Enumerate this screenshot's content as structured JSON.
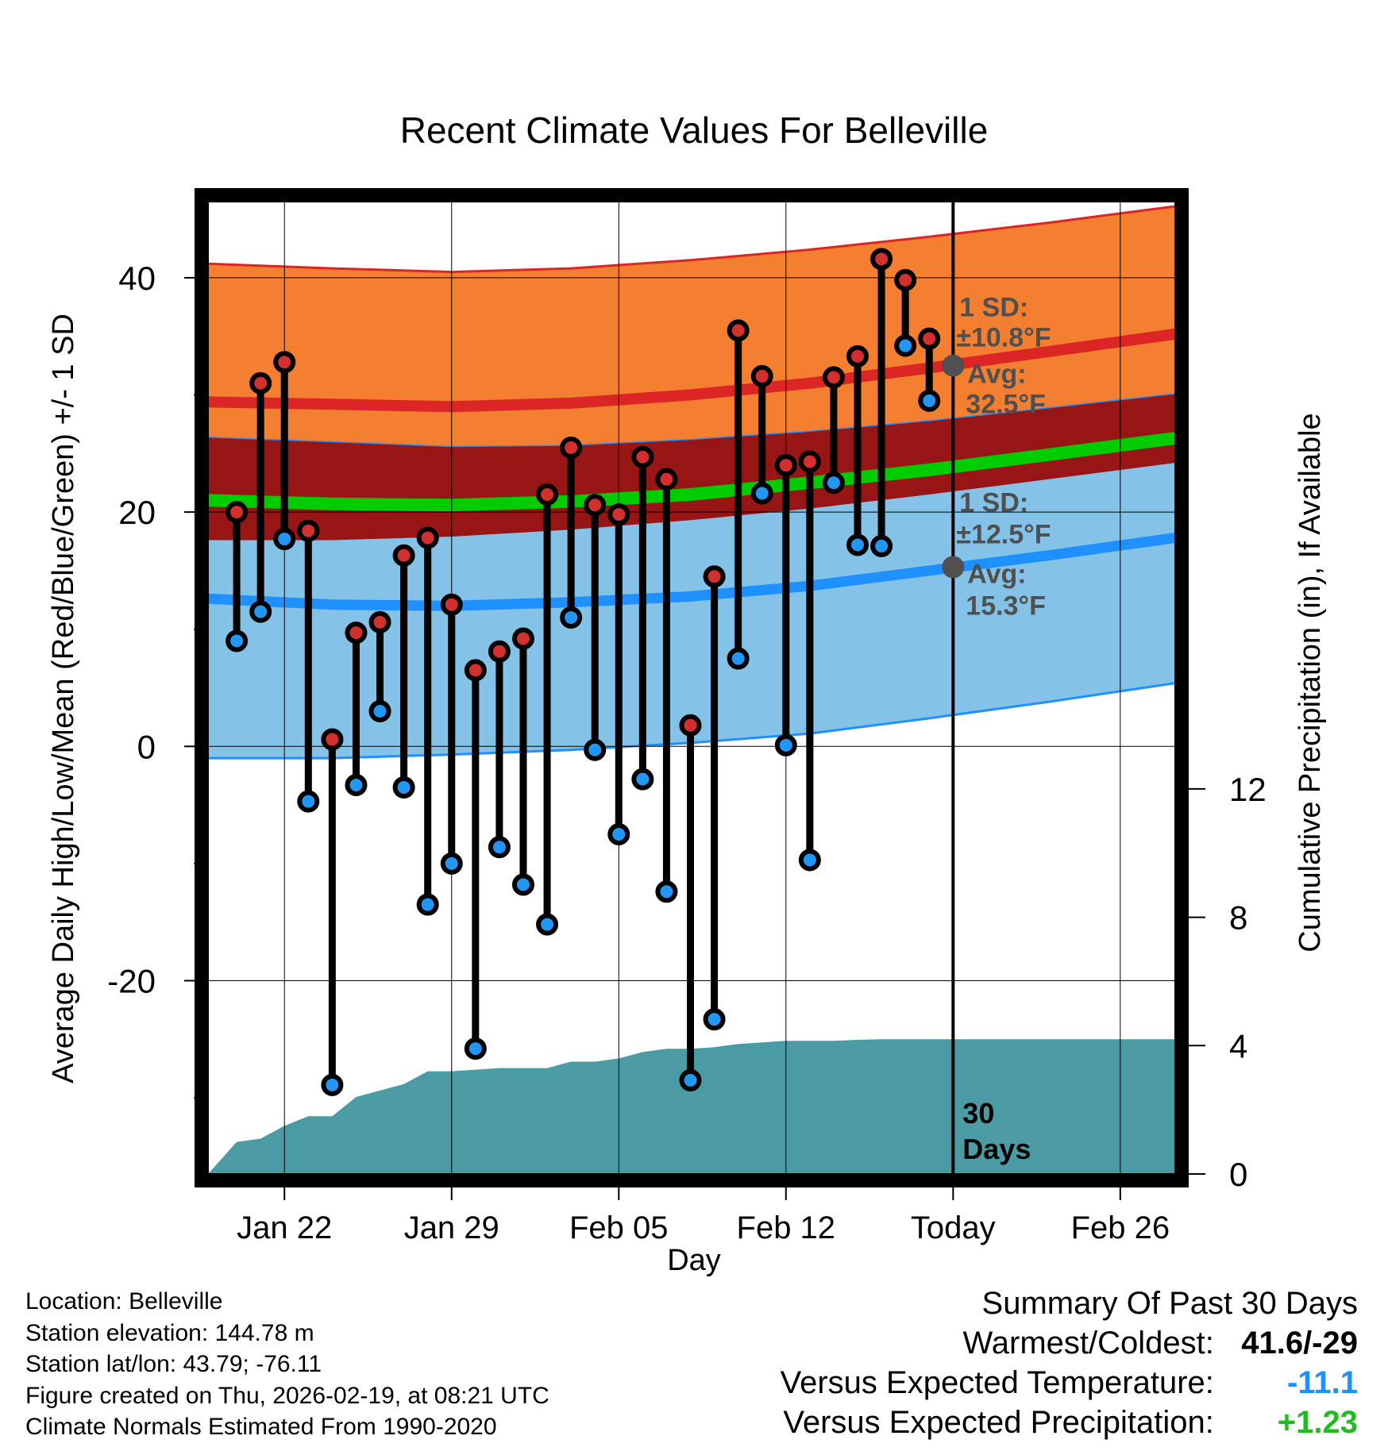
{
  "chart_data": {
    "type": "climate-range",
    "title": "Recent Climate Values For Belleville",
    "xlabel": "Day",
    "ylabel": "Average Daily High/Low/Mean (Red/Blue/Green) +/- 1 SD",
    "y2label": "Cumulative Precipitation (in), If Available",
    "ylim": [
      -36.5,
      46.5
    ],
    "y_ticks": [
      -20,
      0,
      20,
      40
    ],
    "y_tick_labels": [
      "-20",
      "0",
      "20",
      "40"
    ],
    "y2lim": [
      0,
      30.3
    ],
    "y2_ticks": [
      0,
      4,
      8,
      12
    ],
    "y2_tick_labels": [
      "0",
      "4",
      "8",
      "12"
    ],
    "xlim": [
      -3.2,
      37.3
    ],
    "x_ticks": [
      0,
      7,
      14,
      21,
      28,
      35
    ],
    "x_tick_labels": [
      "Jan 22",
      "Jan 29",
      "Feb 05",
      "Feb 12",
      "Today",
      "Feb 26"
    ],
    "today_x": 28,
    "today_label": "30 Days",
    "normals_x": [
      -3.2,
      2,
      7,
      12,
      17,
      22,
      27,
      32,
      37.3
    ],
    "normal_high": [
      29.4,
      29.2,
      29.0,
      29.3,
      30.0,
      31.0,
      32.3,
      33.7,
      35.2
    ],
    "normal_high_plus_sd": [
      41.2,
      40.8,
      40.5,
      40.8,
      41.5,
      42.4,
      43.5,
      44.7,
      46.1
    ],
    "normal_high_minus_sd": [
      26.4,
      26.0,
      25.6,
      25.7,
      26.2,
      26.9,
      27.8,
      28.9,
      30.1
    ],
    "normal_mean": [
      21.0,
      20.7,
      20.6,
      20.9,
      21.5,
      22.5,
      23.6,
      24.9,
      26.3
    ],
    "normal_low": [
      12.6,
      12.1,
      12.0,
      12.3,
      12.8,
      13.7,
      15.0,
      16.3,
      17.8
    ],
    "normal_low_plus_sd": [
      17.6,
      17.6,
      17.9,
      18.5,
      19.3,
      20.3,
      21.5,
      22.8,
      24.2
    ],
    "normal_low_minus_sd": [
      -1.0,
      -1.0,
      -0.7,
      -0.3,
      0.3,
      1.1,
      2.4,
      3.8,
      5.4
    ],
    "daily_x": [
      -2,
      -1,
      0,
      1,
      2,
      3,
      4,
      5,
      6,
      7,
      8,
      9,
      10,
      11,
      12,
      13,
      14,
      15,
      16,
      17,
      18,
      19,
      20,
      21,
      22,
      23,
      24,
      25,
      26,
      27
    ],
    "daily_high": [
      20.0,
      31.0,
      32.8,
      18.4,
      0.6,
      9.7,
      10.6,
      16.3,
      17.8,
      12.1,
      6.5,
      8.1,
      9.2,
      21.5,
      25.5,
      20.6,
      19.8,
      24.7,
      22.8,
      1.8,
      14.5,
      35.5,
      31.6,
      24.0,
      24.3,
      31.5,
      33.3,
      41.6,
      39.8,
      34.8
    ],
    "daily_low": [
      9.0,
      11.5,
      17.7,
      -4.7,
      -28.9,
      -3.3,
      3.0,
      -3.5,
      -13.5,
      -10.0,
      -25.8,
      -8.6,
      -11.8,
      -15.2,
      11.0,
      -0.3,
      -7.5,
      -2.8,
      -12.4,
      -28.5,
      -23.3,
      7.5,
      21.6,
      0.1,
      -9.7,
      22.5,
      17.2,
      17.1,
      34.2,
      29.5
    ],
    "precip_x": [
      -3.2,
      -2,
      -1,
      0,
      1,
      2,
      3,
      4,
      5,
      6,
      7,
      8,
      9,
      10,
      11,
      12,
      13,
      14,
      15,
      16,
      17,
      18,
      19,
      20,
      21,
      22,
      23,
      24,
      25,
      26,
      27,
      28,
      37.3
    ],
    "precip_cumulative": [
      0.0,
      1.0,
      1.1,
      1.5,
      1.8,
      1.8,
      2.4,
      2.6,
      2.8,
      3.2,
      3.2,
      3.25,
      3.3,
      3.3,
      3.3,
      3.5,
      3.5,
      3.6,
      3.8,
      3.9,
      3.9,
      3.95,
      4.05,
      4.1,
      4.15,
      4.15,
      4.15,
      4.18,
      4.2,
      4.2,
      4.2,
      4.2,
      4.2
    ],
    "annotations": {
      "high_sd_label": "1 SD:",
      "high_sd_value": "±10.8°F",
      "high_avg_label": "Avg:",
      "high_avg_value": "32.5°F",
      "high_avg_y": 32.5,
      "low_sd_label": "1 SD:",
      "low_sd_value": "±12.5°F",
      "low_avg_label": "Avg:",
      "low_avg_value": "15.3°F",
      "low_avg_y": 15.3
    },
    "colors": {
      "high_band": "#f47f30",
      "high_line": "#dc2626",
      "high_mid": "#971515",
      "mean_line": "#00cc00",
      "low_band": "#85c2e8",
      "low_line": "#1e90ff",
      "precip": "#4a9ba3",
      "high_dot": "#d32f2f",
      "low_dot": "#2196f3",
      "annotation": "#505050"
    }
  },
  "meta": {
    "location": "Location: Belleville",
    "elevation": "Station elevation: 144.78 m",
    "latlon": "Station lat/lon: 43.79; -76.11",
    "created": "Figure created on Thu, 2026-02-19, at 08:21 UTC",
    "normals": "Climate Normals Estimated From 1990-2020"
  },
  "summary": {
    "title": "Summary Of Past 30 Days",
    "warmest_label": "Warmest/Coldest:",
    "warmest_value": "41.6/-29",
    "temp_label": "Versus Expected Temperature:",
    "temp_value": "-11.1",
    "temp_color": "#1e90ff",
    "precip_label": "Versus Expected Precipitation:",
    "precip_value": "+1.23",
    "precip_color": "#22bb22"
  }
}
